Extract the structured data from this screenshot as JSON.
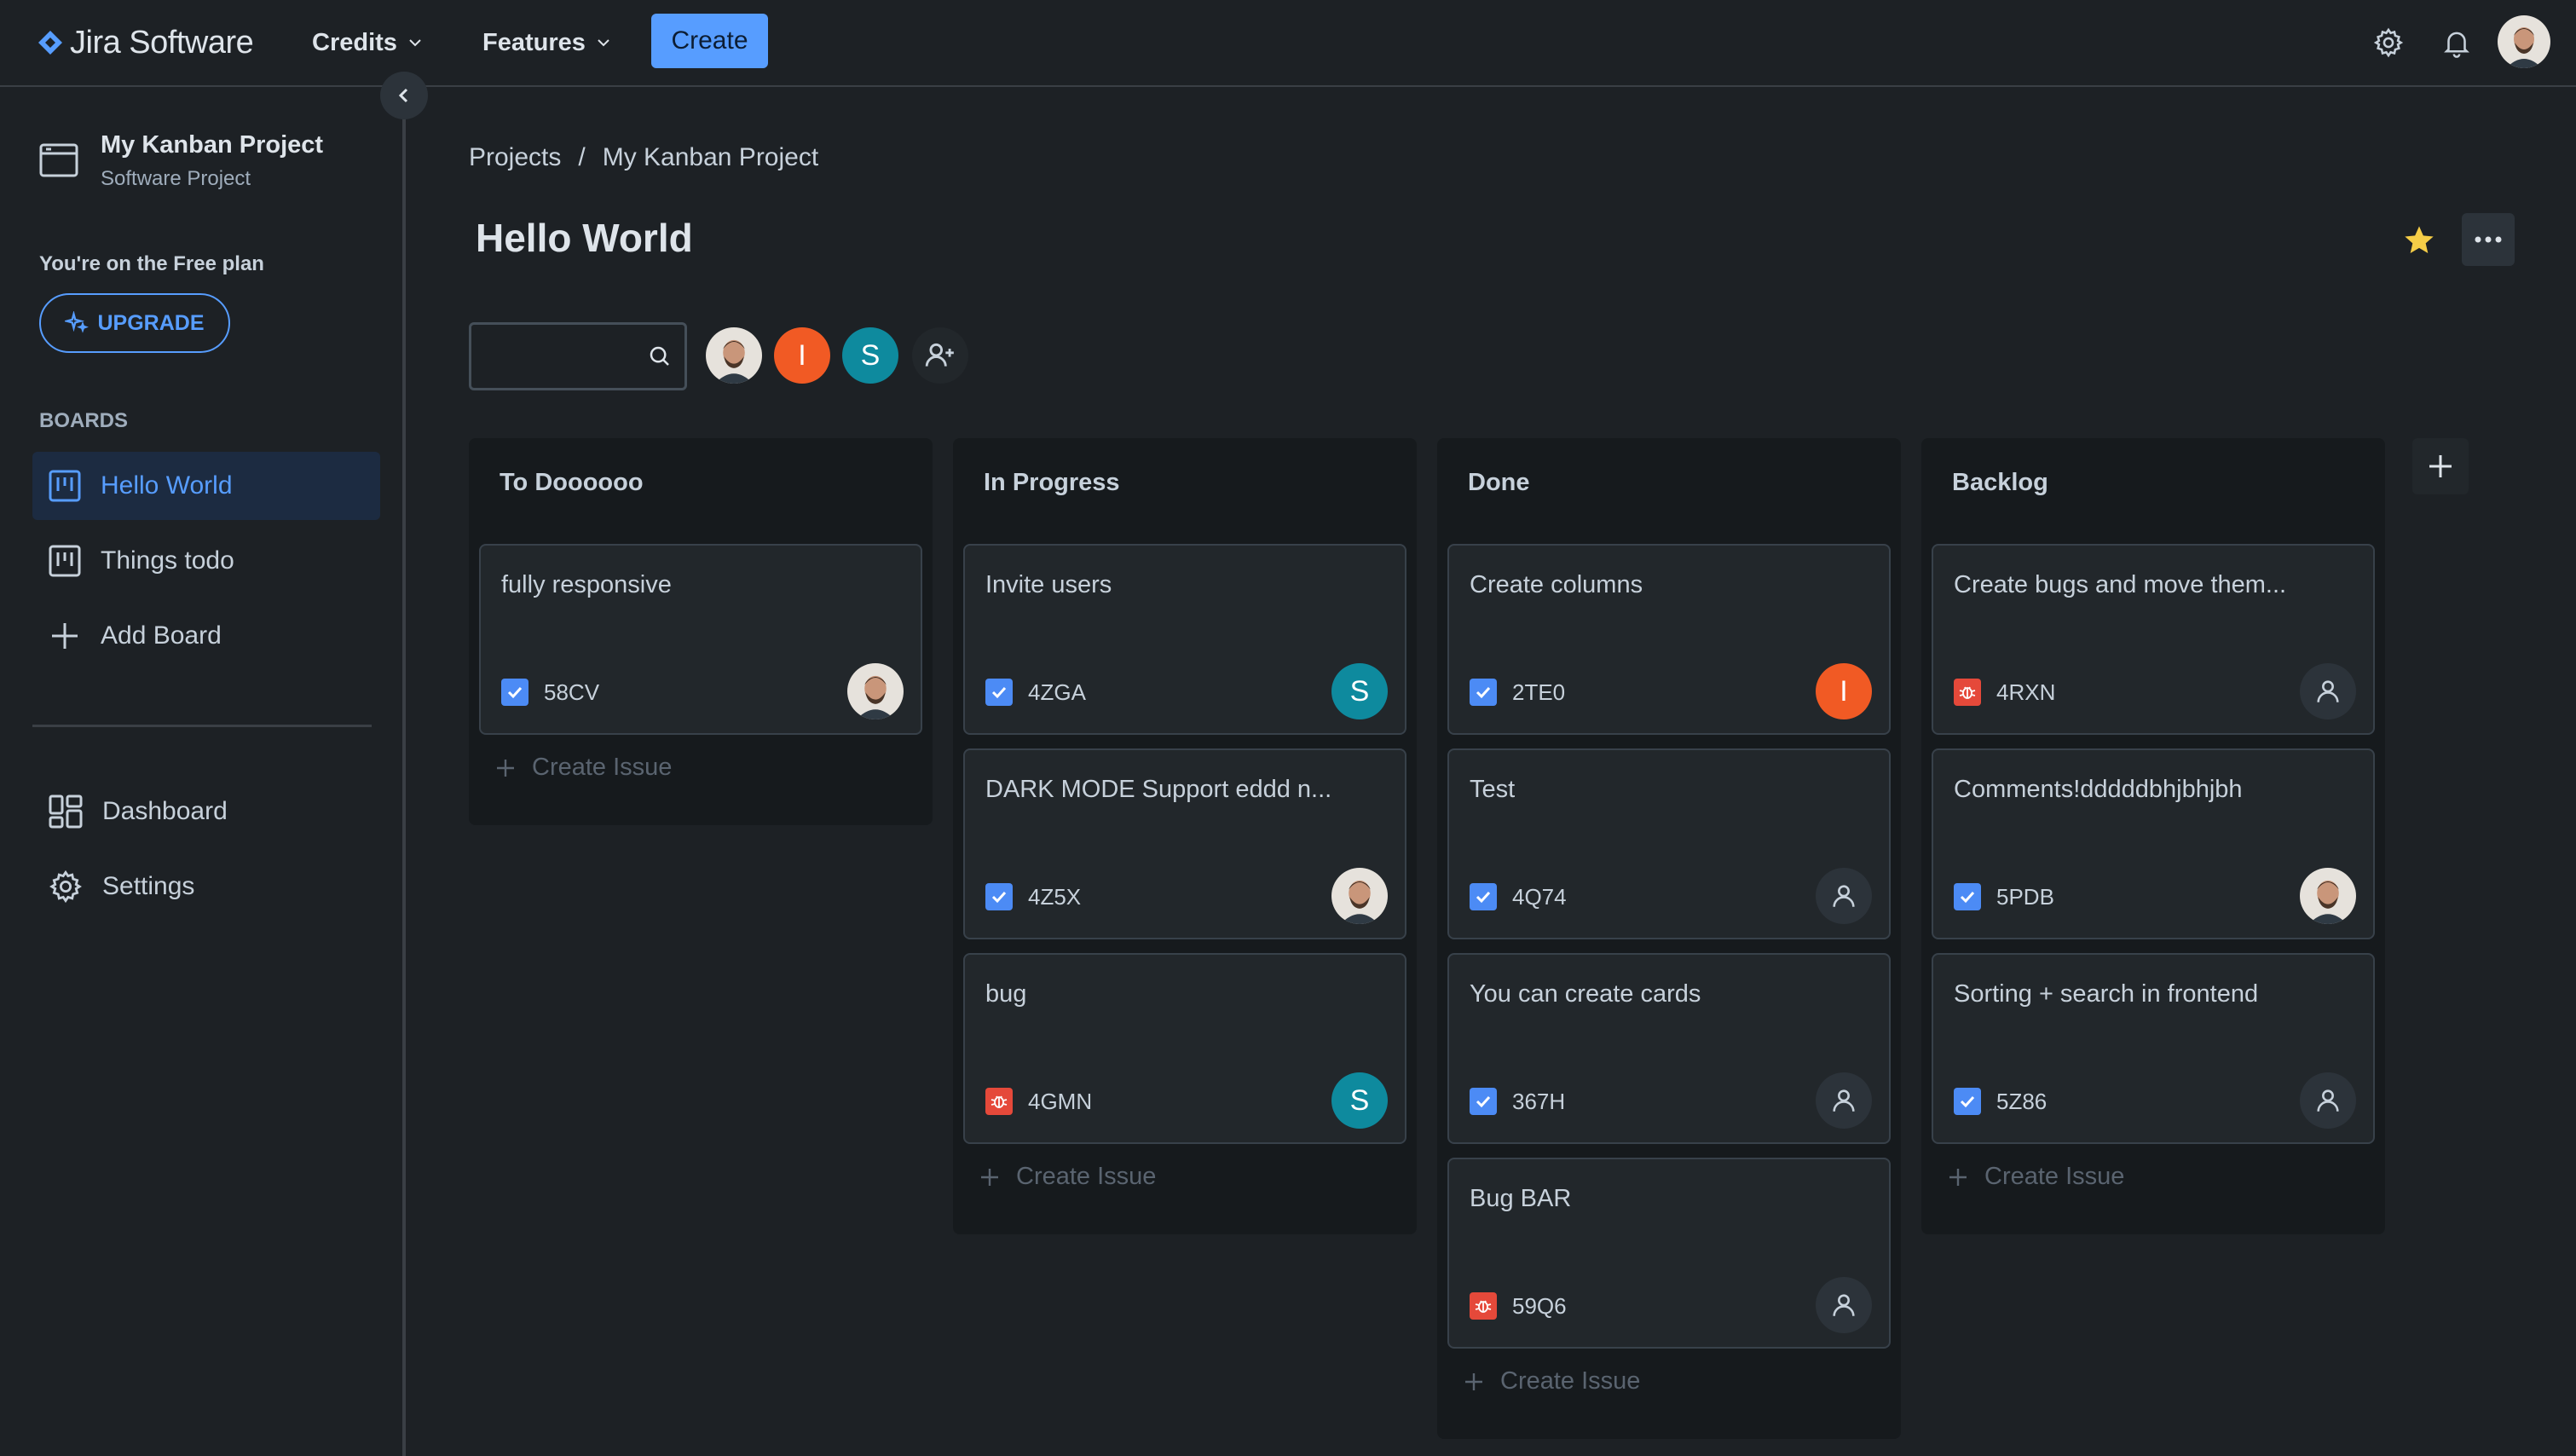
{
  "app": {
    "name": "Jira Software"
  },
  "topnav": {
    "credits_label": "Credits",
    "features_label": "Features",
    "create_label": "Create"
  },
  "sidebar": {
    "project_name": "My Kanban Project",
    "project_type": "Software Project",
    "plan_text": "You're on the Free plan",
    "upgrade_label": "UPGRADE",
    "boards_title": "BOARDS",
    "boards": [
      {
        "label": "Hello World",
        "active": true
      },
      {
        "label": "Things todo",
        "active": false
      }
    ],
    "add_board_label": "Add Board",
    "dashboard_label": "Dashboard",
    "settings_label": "Settings"
  },
  "breadcrumb": {
    "root": "Projects",
    "separator": "/",
    "current": "My Kanban Project"
  },
  "board": {
    "title": "Hello World",
    "search_value": "",
    "members": [
      {
        "type": "photo"
      },
      {
        "initial": "I",
        "color": "#f15a24"
      },
      {
        "initial": "S",
        "color": "#0e8a9e"
      }
    ],
    "create_issue_label": "Create Issue",
    "columns": [
      {
        "title": "To Doooooo",
        "cards": [
          {
            "title": "fully responsive",
            "key": "58CV",
            "type": "task",
            "assignee": "photo"
          }
        ]
      },
      {
        "title": "In Progress",
        "cards": [
          {
            "title": "Invite users",
            "key": "4ZGA",
            "type": "task",
            "assignee": "S"
          },
          {
            "title": "DARK MODE Support eddd n...",
            "key": "4Z5X",
            "type": "task",
            "assignee": "photo"
          },
          {
            "title": "bug",
            "key": "4GMN",
            "type": "bug",
            "assignee": "S"
          }
        ]
      },
      {
        "title": "Done",
        "cards": [
          {
            "title": "Create columns",
            "key": "2TE0",
            "type": "task",
            "assignee": "I"
          },
          {
            "title": "Test",
            "key": "4Q74",
            "type": "task",
            "assignee": "none"
          },
          {
            "title": "You can create cards",
            "key": "367H",
            "type": "task",
            "assignee": "none"
          },
          {
            "title": "Bug BAR",
            "key": "59Q6",
            "type": "bug",
            "assignee": "none"
          }
        ]
      },
      {
        "title": "Backlog",
        "cards": [
          {
            "title": "Create bugs and move them...",
            "key": "4RXN",
            "type": "bug",
            "assignee": "none"
          },
          {
            "title": "Comments!dddddbhjbhjbh",
            "key": "5PDB",
            "type": "task",
            "assignee": "photo"
          },
          {
            "title": "Sorting + search in frontend",
            "key": "5Z86",
            "type": "task",
            "assignee": "none"
          }
        ]
      }
    ]
  },
  "colors": {
    "background": "#1d2125",
    "accent": "#579dff",
    "column_bg": "#161a1d",
    "card_bg": "#22272b",
    "star": "#f5cd47"
  }
}
